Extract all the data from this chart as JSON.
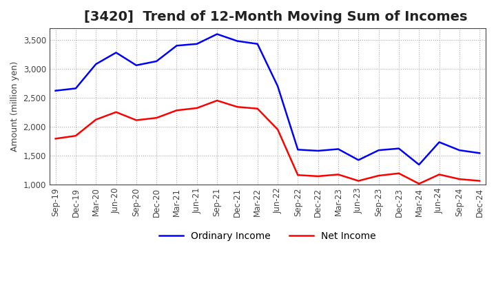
{
  "title": "[3420]  Trend of 12-Month Moving Sum of Incomes",
  "ylabel": "Amount (million yen)",
  "ylim": [
    1000,
    3700
  ],
  "yticks": [
    1000,
    1500,
    2000,
    2500,
    3000,
    3500
  ],
  "background_color": "#ffffff",
  "plot_bg_color": "#ffffff",
  "grid_color": "#aaaaaa",
  "ordinary_income_color": "#0000ff",
  "net_income_color": "#ff0000",
  "x_labels": [
    "Sep-19",
    "Dec-19",
    "Mar-20",
    "Jun-20",
    "Sep-20",
    "Dec-20",
    "Mar-21",
    "Jun-21",
    "Sep-21",
    "Dec-21",
    "Mar-22",
    "Jun-22",
    "Sep-22",
    "Dec-22",
    "Mar-23",
    "Jun-23",
    "Sep-23",
    "Dec-23",
    "Mar-24",
    "Jun-24",
    "Sep-24",
    "Dec-24"
  ],
  "ordinary_income": [
    2620,
    2660,
    3080,
    3280,
    3060,
    3130,
    3400,
    3430,
    3600,
    3480,
    3430,
    2700,
    1600,
    1580,
    1610,
    1420,
    1590,
    1620,
    1340,
    1730,
    1590,
    1540
  ],
  "net_income": [
    1790,
    1840,
    2120,
    2250,
    2110,
    2150,
    2280,
    2320,
    2450,
    2340,
    2310,
    1950,
    1160,
    1140,
    1170,
    1060,
    1150,
    1190,
    1010,
    1170,
    1090,
    1060
  ],
  "line_width": 1.8,
  "title_fontsize": 14,
  "tick_fontsize": 8.5,
  "ylabel_fontsize": 9,
  "legend_fontsize": 10
}
